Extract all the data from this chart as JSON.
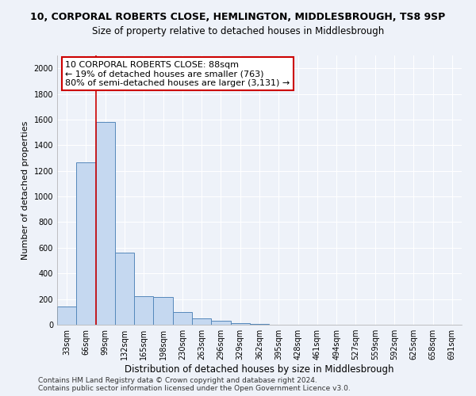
{
  "title": "10, CORPORAL ROBERTS CLOSE, HEMLINGTON, MIDDLESBROUGH, TS8 9SP",
  "subtitle": "Size of property relative to detached houses in Middlesbrough",
  "xlabel": "Distribution of detached houses by size in Middlesbrough",
  "ylabel": "Number of detached properties",
  "categories": [
    "33sqm",
    "66sqm",
    "99sqm",
    "132sqm",
    "165sqm",
    "198sqm",
    "230sqm",
    "263sqm",
    "296sqm",
    "329sqm",
    "362sqm",
    "395sqm",
    "428sqm",
    "461sqm",
    "494sqm",
    "527sqm",
    "559sqm",
    "592sqm",
    "625sqm",
    "658sqm",
    "691sqm"
  ],
  "values": [
    140,
    1265,
    1580,
    560,
    220,
    215,
    100,
    50,
    30,
    10,
    5,
    3,
    2,
    1,
    1,
    0,
    0,
    0,
    0,
    0,
    0
  ],
  "bar_color": "#c5d8f0",
  "bar_edge_color": "#5588bb",
  "vline_color": "#cc0000",
  "annotation_line1": "10 CORPORAL ROBERTS CLOSE: 88sqm",
  "annotation_line2": "← 19% of detached houses are smaller (763)",
  "annotation_line3": "80% of semi-detached houses are larger (3,131) →",
  "annotation_box_color": "#ffffff",
  "annotation_box_edge_color": "#cc0000",
  "ylim": [
    0,
    2100
  ],
  "yticks": [
    0,
    200,
    400,
    600,
    800,
    1000,
    1200,
    1400,
    1600,
    1800,
    2000
  ],
  "footer": "Contains HM Land Registry data © Crown copyright and database right 2024.\nContains public sector information licensed under the Open Government Licence v3.0.",
  "background_color": "#eef2f9",
  "grid_color": "#ffffff",
  "title_fontsize": 9,
  "subtitle_fontsize": 8.5,
  "xlabel_fontsize": 8.5,
  "ylabel_fontsize": 8,
  "tick_fontsize": 7,
  "annotation_fontsize": 8,
  "footer_fontsize": 6.5
}
